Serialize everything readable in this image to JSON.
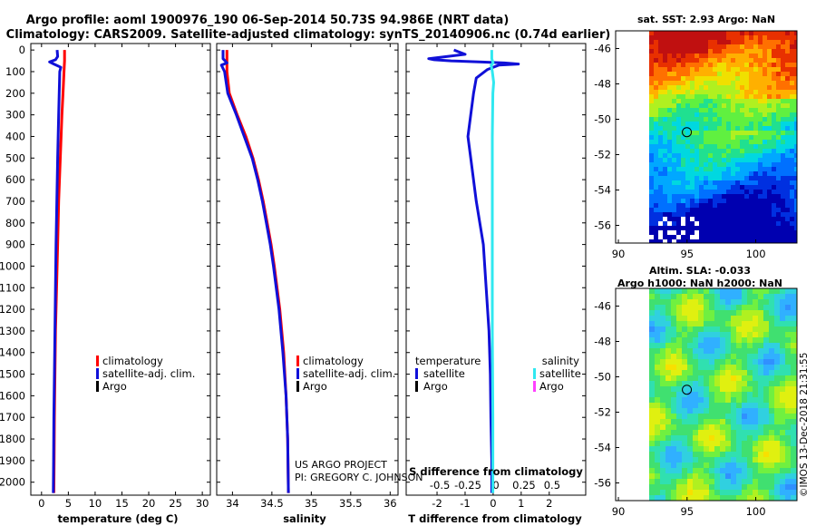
{
  "header": {
    "line1": "Argo profile: aoml 1900976_190 06-Sep-2014 50.73S 94.986E (NRT data)",
    "line2": "Climatology: CARS2009. Satellite-adjusted climatology: synTS_20140906.nc (0.74d earlier)"
  },
  "colors": {
    "red": "#ff0000",
    "blue": "#1010d8",
    "black": "#000000",
    "cyan": "#30e8f0",
    "magenta": "#ff40ff"
  },
  "credit": {
    "line1": "US ARGO PROJECT",
    "line2": "PI: GREGORY C. JOHNSON"
  },
  "stamp": "©IMOS 13-Dec-2018 21:31:55",
  "chart_data": [
    {
      "type": "line",
      "name": "temperature-profile",
      "xlabel": "temperature (deg C)",
      "ylabel": "",
      "xlim": [
        -2,
        31.5
      ],
      "ylim": [
        2060,
        -30
      ],
      "xticks": [
        0,
        5,
        10,
        15,
        20,
        25,
        30
      ],
      "yticks": [
        0,
        100,
        200,
        300,
        400,
        500,
        600,
        700,
        800,
        900,
        1000,
        1100,
        1200,
        1300,
        1400,
        1500,
        1600,
        1700,
        1800,
        1900,
        2000
      ],
      "legend": {
        "position": "lower-right",
        "entries": [
          "climatology",
          "satellite-adj. clim.",
          "Argo"
        ]
      },
      "series": [
        {
          "name": "climatology",
          "color": "red",
          "depth": [
            0,
            50,
            100,
            200,
            300,
            500,
            700,
            900,
            1100,
            1300,
            1500,
            1700,
            1900,
            2050
          ],
          "values": [
            4.3,
            4.3,
            4.2,
            4.0,
            3.8,
            3.5,
            3.2,
            3.0,
            2.8,
            2.6,
            2.5,
            2.4,
            2.35,
            2.3
          ]
        },
        {
          "name": "satellite-adj. clim.",
          "color": "blue",
          "depth": [
            0,
            30,
            45,
            55,
            65,
            80,
            100,
            200,
            300,
            500,
            700,
            900,
            1100,
            1300,
            1500,
            1700,
            1900,
            2050
          ],
          "values": [
            2.9,
            3.0,
            2.6,
            1.5,
            2.3,
            3.6,
            3.4,
            3.3,
            3.2,
            3.0,
            2.85,
            2.7,
            2.6,
            2.5,
            2.4,
            2.3,
            2.25,
            2.2
          ]
        }
      ]
    },
    {
      "type": "line",
      "name": "salinity-profile",
      "xlabel": "salinity",
      "ylabel": "",
      "xlim": [
        33.8,
        36.1
      ],
      "ylim": [
        2060,
        -30
      ],
      "xticks": [
        34,
        34.5,
        35,
        35.5,
        36
      ],
      "legend": {
        "position": "lower-right",
        "entries": [
          "climatology",
          "satellite-adj. clim.",
          "Argo"
        ]
      },
      "series": [
        {
          "name": "climatology",
          "color": "red",
          "depth": [
            0,
            100,
            200,
            300,
            400,
            500,
            600,
            700,
            800,
            900,
            1000,
            1200,
            1400,
            1600,
            1800,
            2050
          ],
          "values": [
            33.93,
            33.93,
            33.96,
            34.06,
            34.17,
            34.26,
            34.33,
            34.39,
            34.44,
            34.49,
            34.53,
            34.6,
            34.65,
            34.68,
            34.7,
            34.71
          ]
        },
        {
          "name": "satellite-adj. clim.",
          "color": "blue",
          "depth": [
            0,
            40,
            60,
            70,
            100,
            200,
            300,
            400,
            500,
            600,
            700,
            800,
            900,
            1000,
            1200,
            1400,
            1600,
            1800,
            2050
          ],
          "values": [
            33.88,
            33.88,
            33.93,
            33.86,
            33.9,
            33.94,
            34.05,
            34.15,
            34.25,
            34.32,
            34.38,
            34.43,
            34.48,
            34.52,
            34.59,
            34.64,
            34.68,
            34.7,
            34.71
          ]
        }
      ]
    },
    {
      "type": "line",
      "name": "difference-profile",
      "xlabel": "T difference from climatology",
      "top_label": "S difference from climatology",
      "xlim": [
        -3.1,
        3.3
      ],
      "ylim": [
        2060,
        -30
      ],
      "xticks": [
        -2,
        -1,
        0,
        1,
        2
      ],
      "top_ticks": [
        -0.5,
        -0.25,
        0,
        0.25,
        0.5
      ],
      "legend": {
        "position": "lower",
        "temperature_title": "temperature",
        "salinity_title": "salinity",
        "temperature_entries": [
          "satellite",
          "Argo"
        ],
        "salinity_entries": [
          "satellite",
          "Argo"
        ]
      },
      "series": [
        {
          "name": "temperature satellite",
          "color": "blue",
          "depth": [
            0,
            20,
            40,
            45,
            50,
            55,
            60,
            65,
            70,
            90,
            130,
            200,
            300,
            400,
            500,
            700,
            900,
            1100,
            1300,
            1500,
            1700,
            1900,
            2050
          ],
          "values": [
            -1.4,
            -1.0,
            -2.3,
            -2.1,
            -1.5,
            -0.5,
            0.4,
            0.9,
            0.2,
            -0.2,
            -0.6,
            -0.7,
            -0.8,
            -0.9,
            -0.8,
            -0.6,
            -0.35,
            -0.25,
            -0.15,
            -0.1,
            -0.08,
            -0.05,
            -0.05
          ]
        },
        {
          "name": "salinity satellite",
          "color": "cyan",
          "depth": [
            0,
            40,
            60,
            70,
            100,
            150,
            200,
            300,
            400,
            500,
            700,
            900,
            1100,
            1300,
            1500,
            1700,
            1900,
            2050
          ],
          "values": [
            -0.05,
            -0.05,
            0.0,
            -0.07,
            -0.03,
            0.02,
            -0.01,
            -0.02,
            -0.03,
            -0.03,
            -0.03,
            -0.03,
            -0.03,
            -0.03,
            -0.02,
            -0.01,
            -0.01,
            -0.01
          ]
        }
      ]
    },
    {
      "type": "heatmap",
      "name": "sst-map",
      "title": "sat. SST: 2.93 Argo: NaN",
      "xlim": [
        89.8,
        103.0
      ],
      "ylim": [
        -57.0,
        -45.0
      ],
      "xticks": [
        90,
        95,
        100
      ],
      "yticks": [
        -46,
        -48,
        -50,
        -52,
        -54,
        -56
      ],
      "marker": {
        "lon": 94.986,
        "lat": -50.73
      }
    },
    {
      "type": "heatmap",
      "name": "sla-map",
      "title_line1": "Altim. SLA: -0.033",
      "title_line2": "Argo h1000: NaN h2000: NaN",
      "xlim": [
        89.8,
        103.0
      ],
      "ylim": [
        -57.0,
        -45.0
      ],
      "xticks": [
        90,
        95,
        100
      ],
      "yticks": [
        -46,
        -48,
        -50,
        -52,
        -54,
        -56
      ],
      "marker": {
        "lon": 94.986,
        "lat": -50.73
      }
    }
  ]
}
